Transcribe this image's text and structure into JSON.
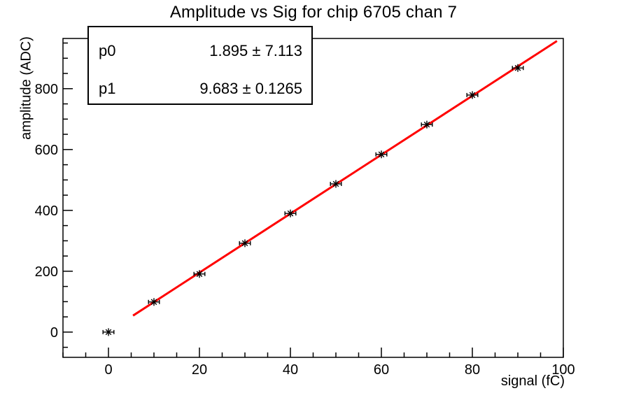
{
  "title": "Amplitude vs Sig for chip 6705 chan 7",
  "stats_box": {
    "rows": [
      {
        "label": "p0",
        "value": "1.895 ± 7.113"
      },
      {
        "label": "p1",
        "value": "9.683 ± 0.1265"
      }
    ]
  },
  "chart_data": {
    "type": "scatter",
    "title": "Amplitude vs Sig for chip 6705 chan 7",
    "xlabel": "signal (fC)",
    "ylabel": "amplitude (ADC)",
    "x": [
      0,
      10,
      20,
      30,
      40,
      50,
      60,
      70,
      80,
      90
    ],
    "y": [
      0,
      99,
      191,
      292,
      390,
      487,
      584,
      682,
      779,
      868
    ],
    "xerr": 1.2,
    "marker": "asterisk-with-x-error-bars",
    "marker_color": "#000000",
    "axis_color": "#000000",
    "background_color": "#ffffff",
    "xlim": [
      -10,
      100
    ],
    "ylim": [
      -83,
      965
    ],
    "xticks": [
      0,
      20,
      40,
      60,
      80,
      100
    ],
    "yticks": [
      0,
      200,
      400,
      600,
      800
    ],
    "x_minor_step": 5,
    "y_minor_step": 50,
    "grid": false,
    "legend": null,
    "fit": {
      "type": "linear",
      "p0": 1.895,
      "p0_err": 7.113,
      "p1": 9.683,
      "p1_err": 0.1265,
      "draw_range": [
        5.4,
        98.6
      ],
      "color": "#ff0000"
    }
  }
}
